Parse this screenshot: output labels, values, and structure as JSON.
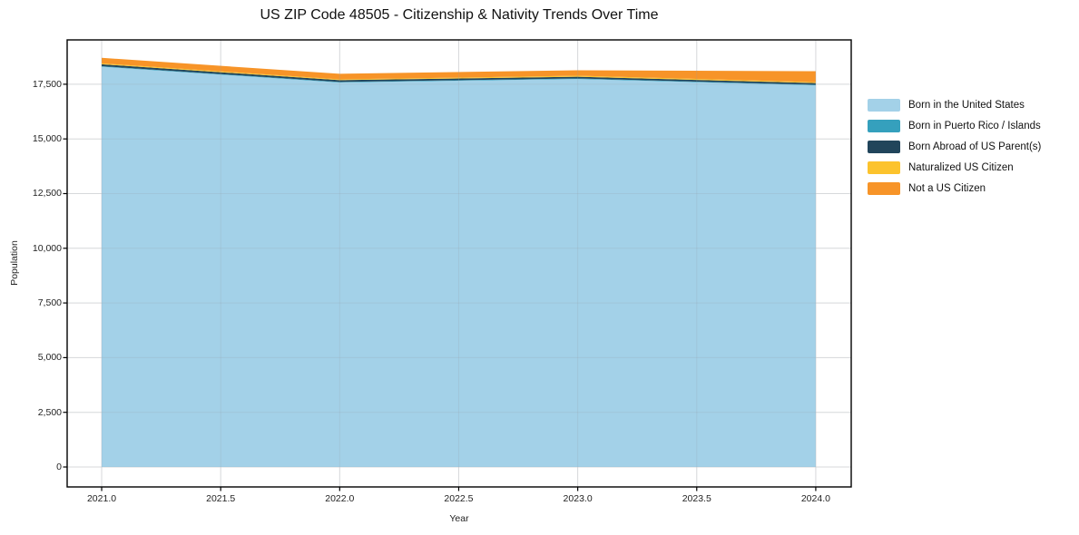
{
  "title": "US ZIP Code 48505 - Citizenship & Nativity Trends Over Time",
  "chart_data": {
    "type": "area",
    "stacked": true,
    "title": "US ZIP Code 48505 - Citizenship & Nativity Trends Over Time",
    "xlabel": "Year",
    "ylabel": "Population",
    "grid": true,
    "legend_position": "right",
    "x": [
      2021,
      2022,
      2023,
      2024
    ],
    "series": [
      {
        "name": "Born in the United States",
        "color": "#a3d1e8",
        "values": [
          18300,
          17580,
          17740,
          17450
        ]
      },
      {
        "name": "Born in Puerto Rico / Islands",
        "color": "#35a0bd",
        "values": [
          25,
          25,
          25,
          25
        ]
      },
      {
        "name": "Born Abroad of US Parent(s)",
        "color": "#21455b",
        "values": [
          85,
          80,
          80,
          80
        ]
      },
      {
        "name": "Naturalized US Citizen",
        "color": "#fcc32d",
        "values": [
          45,
          40,
          45,
          40
        ]
      },
      {
        "name": "Not a US Citizen",
        "color": "#f79428",
        "values": [
          250,
          250,
          250,
          500
        ]
      }
    ],
    "x_ticks": [
      "2021.0",
      "2021.5",
      "2022.0",
      "2022.5",
      "2023.0",
      "2023.5",
      "2024.0"
    ],
    "x_tick_values": [
      2021.0,
      2021.5,
      2022.0,
      2022.5,
      2023.0,
      2023.5,
      2024.0
    ],
    "y_ticks": [
      "0",
      "2,500",
      "5,000",
      "7,500",
      "10,000",
      "12,500",
      "15,000",
      "17,500"
    ],
    "y_tick_values": [
      0,
      2500,
      5000,
      7500,
      10000,
      12500,
      15000,
      17500
    ],
    "xlim": [
      2020.855,
      2024.149
    ],
    "ylim": [
      -912,
      19527
    ],
    "grid_color": "#e9e9e9",
    "frame_color": "#000000"
  }
}
